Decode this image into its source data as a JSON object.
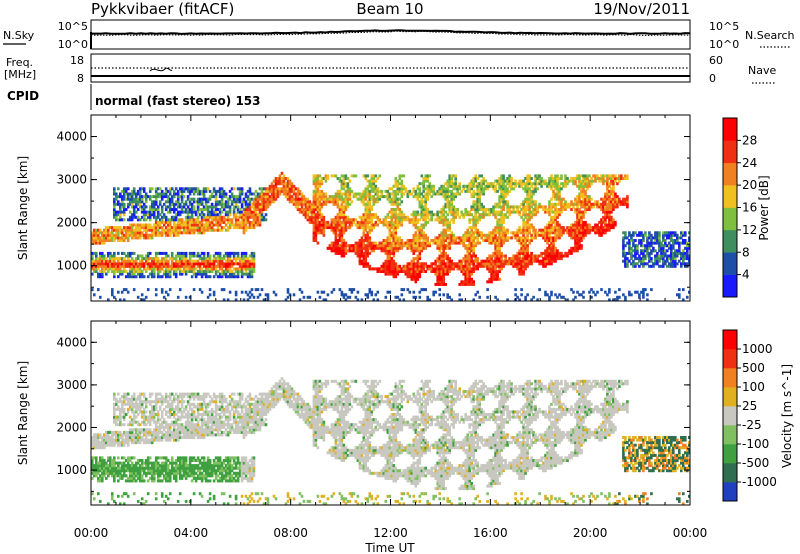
{
  "header": {
    "station": "Pykkvibaer (fitACF)",
    "beam": "Beam 10",
    "date": "19/Nov/2011"
  },
  "top_panels": {
    "nsky_label": "N.Sky",
    "nsearch_label": "N.Search",
    "nsky_ticks": [
      "10^5",
      "10^0"
    ],
    "nsearch_ticks": [
      "10^5",
      "10^0"
    ],
    "freq_label_1": "Freq.",
    "freq_label_2": "[MHz]",
    "freq_ticks": [
      "18",
      "8"
    ],
    "nave_label": "Nave",
    "nave_ticks": [
      "60",
      "0"
    ],
    "cpid_label": "CPID",
    "cpid_text": "normal (fast stereo) 153"
  },
  "chart_data": [
    {
      "type": "heatmap",
      "name": "power",
      "ylabel": "Slant Range [km]",
      "ylim": [
        180,
        4500
      ],
      "yticks": [
        "1000",
        "2000",
        "3000",
        "4000"
      ],
      "xlim": [
        "00:00",
        "00:00"
      ],
      "colorbar_label": "Power [dB]",
      "colorbar_ticks": [
        "4",
        "8",
        "12",
        "16",
        "20",
        "24",
        "28"
      ],
      "colors": [
        "#1a1aff",
        "#1e4fa8",
        "#3f8f5e",
        "#7fbf3f",
        "#f0c020",
        "#f08020",
        "#f03010",
        "#ff0000"
      ]
    },
    {
      "type": "heatmap",
      "name": "velocity",
      "ylabel": "Slant Range [km]",
      "ylim": [
        180,
        4500
      ],
      "yticks": [
        "1000",
        "2000",
        "3000",
        "4000"
      ],
      "xlim": [
        "00:00",
        "00:00"
      ],
      "xticks": [
        "00:00",
        "04:00",
        "08:00",
        "12:00",
        "16:00",
        "20:00",
        "00:00"
      ],
      "xlabel": "Time UT",
      "colorbar_label": "Velocity [m s^-1]",
      "colorbar_ticks": [
        "1000",
        "500",
        "100",
        "25",
        "-25",
        "-100",
        "-500",
        "-1000"
      ],
      "colors": [
        "#2040c0",
        "#2f6f4f",
        "#3fa040",
        "#80c060",
        "#c8c8c0",
        "#e0b020",
        "#f08020",
        "#f03010",
        "#ff0000"
      ]
    }
  ]
}
